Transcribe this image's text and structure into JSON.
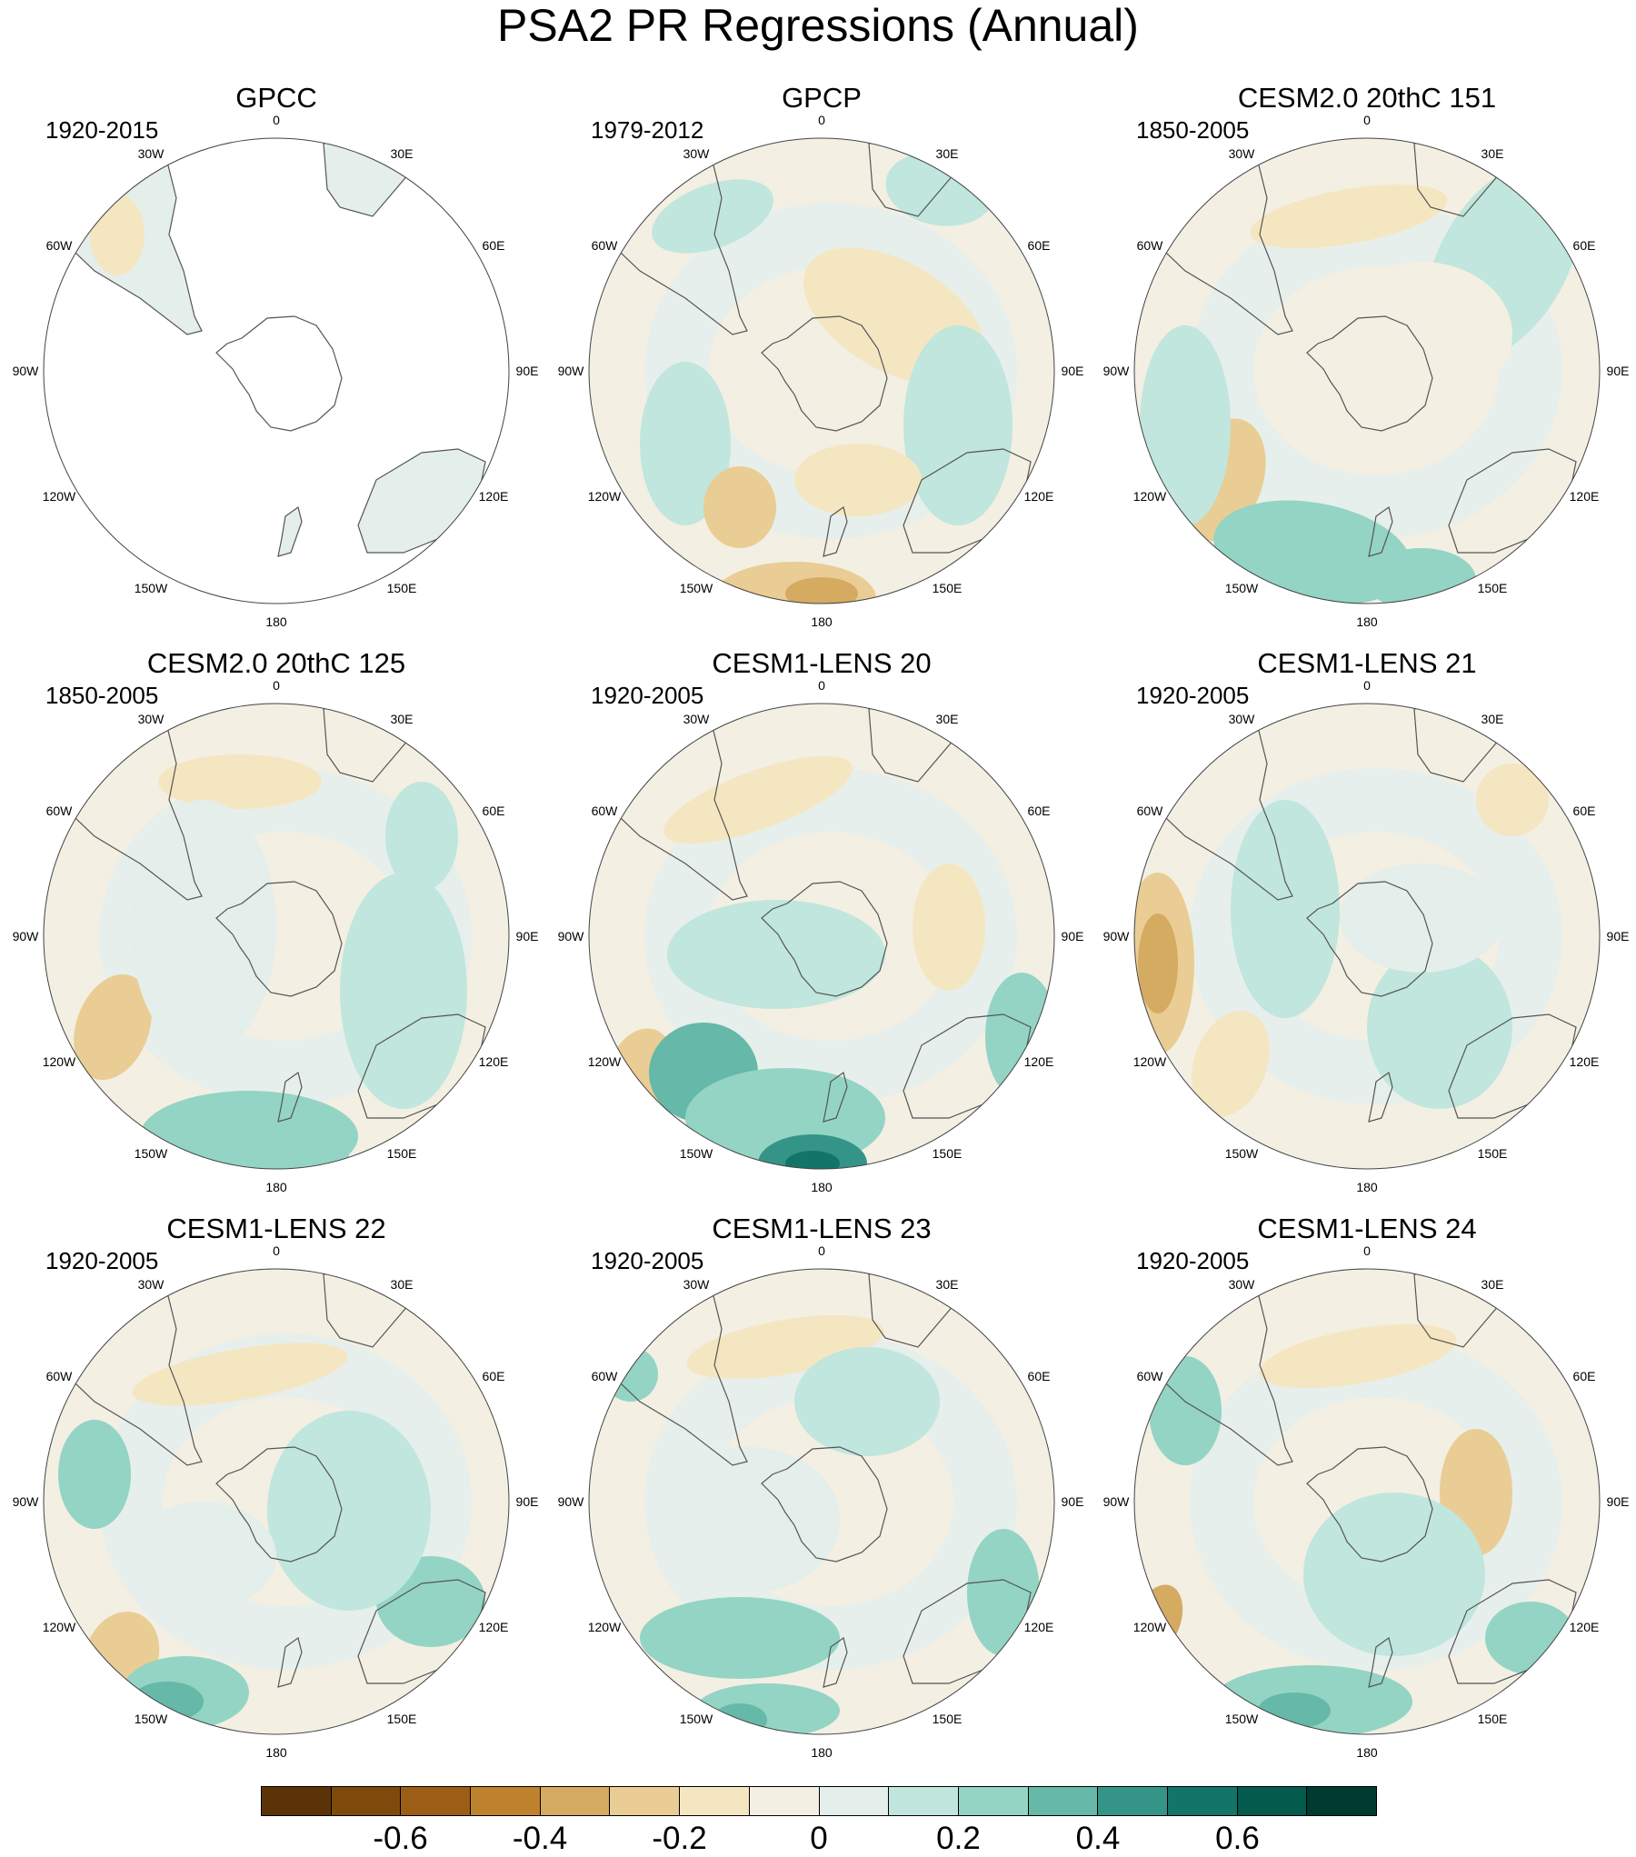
{
  "title": "PSA2 PR Regressions (Annual)",
  "panels": [
    {
      "title": "GPCC",
      "period": "1920-2015"
    },
    {
      "title": "GPCP",
      "period": "1979-2012"
    },
    {
      "title": "CESM2.0 20thC 151",
      "period": "1850-2005"
    },
    {
      "title": "CESM2.0 20thC 125",
      "period": "1850-2005"
    },
    {
      "title": "CESM1-LENS 20",
      "period": "1920-2005"
    },
    {
      "title": "CESM1-LENS 21",
      "period": "1920-2005"
    },
    {
      "title": "CESM1-LENS 22",
      "period": "1920-2005"
    },
    {
      "title": "CESM1-LENS 23",
      "period": "1920-2005"
    },
    {
      "title": "CESM1-LENS 24",
      "period": "1920-2005"
    }
  ],
  "longitude_labels": {
    "lon_0": "0",
    "lon_30e": "30E",
    "lon_60e": "60E",
    "lon_90e": "90E",
    "lon_120e": "120E",
    "lon_150e": "150E",
    "lon_180": "180",
    "lon_150w": "150W",
    "lon_120w": "120W",
    "lon_90w": "90W",
    "lon_60w": "60W",
    "lon_30w": "30W"
  },
  "colorbar": {
    "colors": [
      "#5c3306",
      "#7d4a0c",
      "#9c5d16",
      "#be822e",
      "#d5ab62",
      "#e9cd94",
      "#f5e6c2",
      "#f3efe3",
      "#e4eeeb",
      "#c0e6dd",
      "#93d4c5",
      "#66b8a8",
      "#359488",
      "#13756a",
      "#045a4c",
      "#003b30"
    ],
    "ticks": [
      "-0.6",
      "-0.4",
      "-0.2",
      "0",
      "0.2",
      "0.4",
      "0.6"
    ],
    "tick_values": [
      -0.6,
      -0.4,
      -0.2,
      0,
      0.2,
      0.4,
      0.6
    ],
    "range": [
      -0.8,
      0.8
    ]
  }
}
